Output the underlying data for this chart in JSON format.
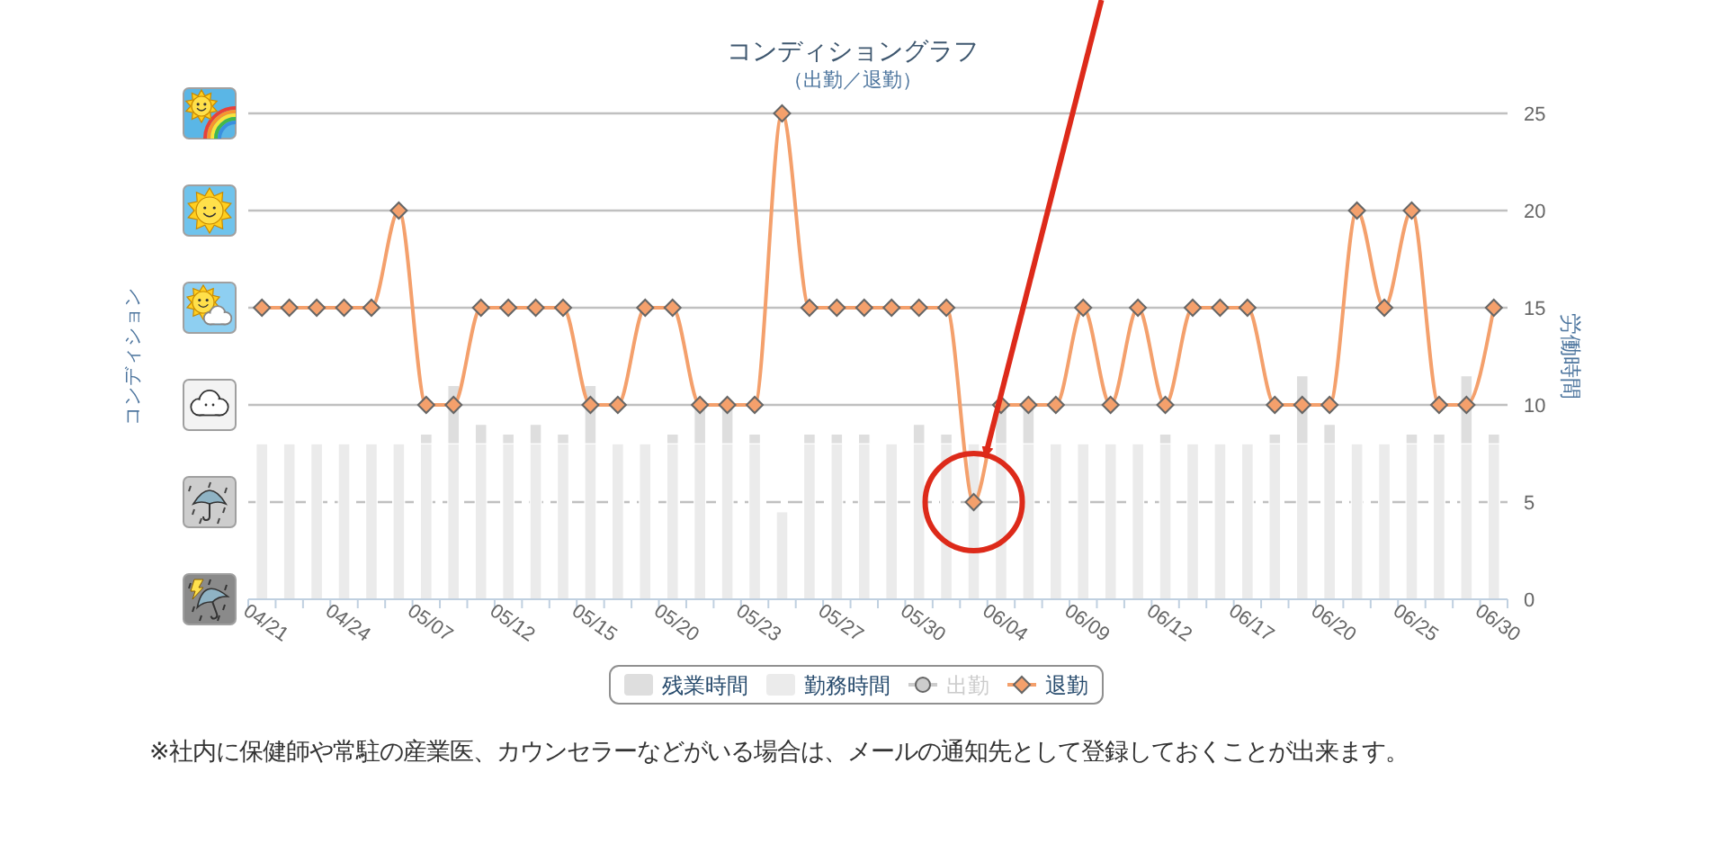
{
  "chart_data": {
    "type": "bar",
    "title": "コンディショングラフ",
    "subtitle": "（出勤／退勤）",
    "y2label": "労働時間",
    "annotations": [
      "コンディション",
      "※社内に保健師や常駐の産業医、カウンセラーなどがいる場合は、メールの通知先として登録しておくことが出来ます。"
    ],
    "categories": [
      "04/21",
      null,
      null,
      "04/24",
      null,
      null,
      "05/07",
      null,
      null,
      "05/12",
      null,
      null,
      "05/15",
      null,
      null,
      "05/20",
      null,
      null,
      "05/23",
      null,
      null,
      "05/27",
      null,
      null,
      "05/30",
      null,
      null,
      "06/04",
      null,
      null,
      "06/09",
      null,
      null,
      "06/12",
      null,
      null,
      "06/17",
      null,
      null,
      "06/20",
      null,
      null,
      "06/25",
      null,
      null,
      "06/30"
    ],
    "series": [
      {
        "name": "勤務時間",
        "color": "#ebebeb",
        "axis": "y2",
        "values": [
          8,
          8,
          8,
          8,
          8,
          8,
          8,
          8,
          8,
          8,
          8,
          8,
          8,
          8,
          8,
          8,
          8,
          8,
          8,
          4.5,
          8,
          8,
          8,
          8,
          8,
          8,
          8,
          8,
          8,
          8,
          8,
          8,
          8,
          8,
          8,
          8,
          8,
          8,
          8,
          8,
          8,
          8,
          8,
          8,
          8,
          8
        ]
      },
      {
        "name": "残業時間",
        "color": "#dedede",
        "axis": "y2",
        "values": [
          null,
          null,
          null,
          null,
          null,
          null,
          0.5,
          3,
          1,
          0.5,
          1,
          0.5,
          3,
          null,
          null,
          0.5,
          2,
          2,
          0.5,
          null,
          0.5,
          0.5,
          0.5,
          null,
          1,
          0.5,
          null,
          2,
          2,
          null,
          null,
          null,
          null,
          0.5,
          null,
          null,
          null,
          0.5,
          3.5,
          1,
          null,
          null,
          0.5,
          0.5,
          3.5,
          0.5
        ]
      },
      {
        "name": "出勤",
        "type": "line",
        "color": "#cccccc",
        "marker": "circle",
        "axis": "y2",
        "values": [
          null,
          null,
          null,
          null,
          null,
          null,
          null,
          null,
          null,
          null,
          null,
          null,
          null,
          null,
          null,
          null,
          null,
          null,
          null,
          null,
          null,
          null,
          null,
          null,
          null,
          null,
          null,
          null,
          null,
          null,
          null,
          null,
          null,
          null,
          null,
          null,
          null,
          null,
          null,
          null,
          null,
          null,
          null,
          null,
          null,
          null
        ]
      },
      {
        "name": "退勤",
        "type": "line",
        "color": "#f4a06c",
        "marker": "diamond",
        "axis": "y2",
        "values": [
          15,
          15,
          15,
          15,
          15,
          20,
          10,
          10,
          15,
          15,
          15,
          15,
          10,
          10,
          15,
          15,
          10,
          10,
          10,
          25,
          15,
          15,
          15,
          15,
          15,
          15,
          5,
          10,
          10,
          10,
          15,
          10,
          15,
          10,
          15,
          15,
          15,
          10,
          10,
          10,
          20,
          15,
          20,
          10,
          10,
          15
        ]
      }
    ],
    "stacked": true,
    "y2lim": [
      0,
      25
    ],
    "y2ticks": [
      0,
      5,
      10,
      15,
      20,
      25
    ],
    "ref_lines": [
      {
        "axis": "y2",
        "value": 5,
        "color": "#c0c0c0",
        "line_style": "dashed"
      }
    ],
    "grid": "y",
    "legend": "bottom"
  }
}
